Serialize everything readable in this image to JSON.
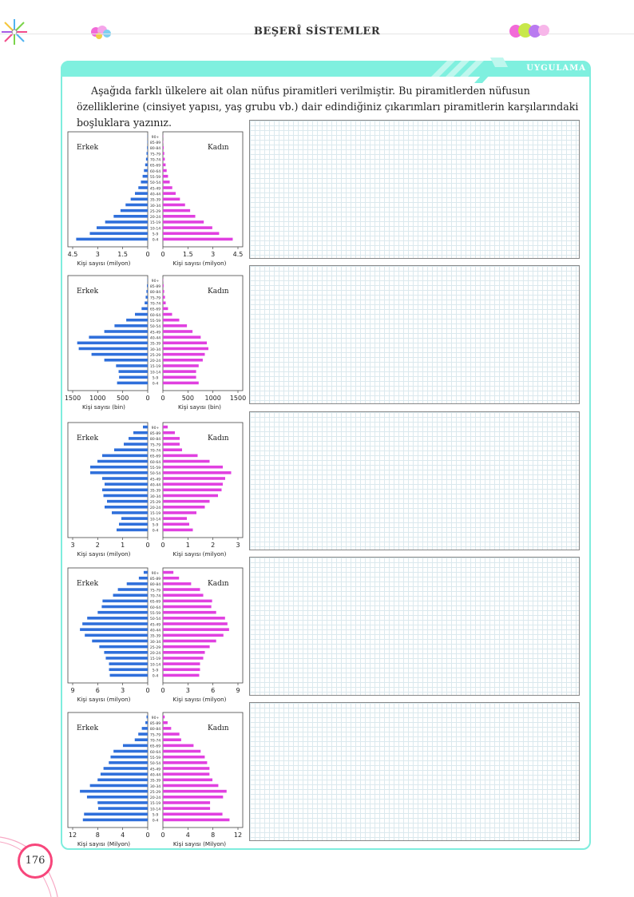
{
  "header": {
    "title": "BEŞERÎ SİSTEMLER"
  },
  "tab": {
    "label": "UYGULAMA"
  },
  "intro": "Aşağıda farklı ülkelere ait olan nüfus piramitleri verilmiştir. Bu piramitlerden nüfusun özelliklerine (cinsiyet yapısı, yaş grubu vb.) dair edindiğiniz çıkarımları piramitlerin karşılarındaki boşluklara yazınız.",
  "page_number": "176",
  "colors": {
    "male": "#2f6fdb",
    "female": "#e040e0",
    "accent": "#7ff0df",
    "page_circle": "#f7467b"
  },
  "chart_data": [
    {
      "type": "bar",
      "age_groups": [
        "0-4",
        "5-9",
        "10-14",
        "15-19",
        "20-24",
        "25-29",
        "30-34",
        "35-39",
        "40-44",
        "45-49",
        "50-54",
        "55-59",
        "60-64",
        "65-69",
        "70-74",
        "75-79",
        "80-84",
        "85-89",
        "90+"
      ],
      "male_label": "Erkek",
      "female_label": "Kadın",
      "xlabel": "Kişi sayısı (milyon)",
      "ticks_left": [
        "4.5",
        "3",
        "1.5",
        "0"
      ],
      "ticks_right": [
        "0",
        "1.5",
        "3",
        "4.5"
      ],
      "max": 4.5,
      "series": [
        {
          "name": "Erkek",
          "values": [
            4.2,
            3.4,
            3.0,
            2.5,
            2.0,
            1.6,
            1.3,
            1.0,
            0.75,
            0.55,
            0.4,
            0.3,
            0.22,
            0.15,
            0.1,
            0.07,
            0.04,
            0.02,
            0.01
          ]
        },
        {
          "name": "Kadın",
          "values": [
            4.1,
            3.3,
            2.9,
            2.4,
            1.9,
            1.6,
            1.3,
            1.0,
            0.75,
            0.55,
            0.4,
            0.3,
            0.22,
            0.16,
            0.11,
            0.08,
            0.05,
            0.02,
            0.01
          ]
        }
      ]
    },
    {
      "type": "bar",
      "age_groups": [
        "0-4",
        "5-9",
        "10-14",
        "15-19",
        "20-24",
        "25-29",
        "30-34",
        "35-39",
        "40-44",
        "45-49",
        "50-54",
        "55-59",
        "60-64",
        "65-69",
        "70-74",
        "75-79",
        "80-84",
        "85-89",
        "90+"
      ],
      "male_label": "Erkek",
      "female_label": "Kadın",
      "xlabel": "Kişi sayısı (bin)",
      "ticks_left": [
        "1500",
        "1000",
        "500",
        "0"
      ],
      "ticks_right": [
        "0",
        "500",
        "1000",
        "1500"
      ],
      "max": 1500,
      "series": [
        {
          "name": "Erkek",
          "values": [
            600,
            560,
            570,
            620,
            850,
            1100,
            1350,
            1380,
            1150,
            850,
            650,
            420,
            250,
            120,
            60,
            40,
            25,
            15,
            5
          ]
        },
        {
          "name": "Kadın",
          "values": [
            700,
            650,
            650,
            700,
            780,
            820,
            890,
            860,
            740,
            580,
            470,
            320,
            180,
            100,
            55,
            40,
            25,
            15,
            5
          ]
        }
      ]
    },
    {
      "type": "bar",
      "age_groups": [
        "0-4",
        "5-9",
        "10-14",
        "15-19",
        "20-24",
        "25-29",
        "30-34",
        "35-39",
        "40-44",
        "45-49",
        "50-54",
        "55-59",
        "60-64",
        "65-69",
        "70-74",
        "75-79",
        "80-84",
        "85-89",
        "90+"
      ],
      "male_label": "Erkek",
      "female_label": "Kadın",
      "xlabel": "Kişi sayısı (milyon)",
      "ticks_left": [
        "3",
        "2",
        "1",
        "0"
      ],
      "ticks_right": [
        "0",
        "1",
        "2",
        "3"
      ],
      "max": 3.2,
      "series": [
        {
          "name": "Erkek",
          "values": [
            1.3,
            1.2,
            1.1,
            1.5,
            1.8,
            1.7,
            1.85,
            1.9,
            1.8,
            1.9,
            2.4,
            2.4,
            2.1,
            1.9,
            1.4,
            1.0,
            0.8,
            0.6,
            0.2
          ]
        },
        {
          "name": "Kadın",
          "values": [
            1.25,
            1.1,
            1.0,
            1.4,
            1.75,
            1.95,
            2.3,
            2.45,
            2.5,
            2.6,
            2.85,
            2.5,
            1.95,
            1.45,
            0.8,
            0.7,
            0.7,
            0.5,
            0.2
          ]
        }
      ]
    },
    {
      "type": "bar",
      "age_groups": [
        "0-4",
        "5-9",
        "10-14",
        "15-19",
        "20-24",
        "25-29",
        "30-34",
        "35-39",
        "40-44",
        "45-49",
        "50-54",
        "55-59",
        "60-64",
        "65-69",
        "70-74",
        "75-79",
        "80-84",
        "85-89",
        "90+"
      ],
      "male_label": "Erkek",
      "female_label": "Kadın",
      "xlabel": "Kişi sayısı (milyon)",
      "ticks_left": [
        "9",
        "6",
        "3",
        "0"
      ],
      "ticks_right": [
        "0",
        "3",
        "6",
        "9"
      ],
      "max": 9.5,
      "series": [
        {
          "name": "Erkek",
          "values": [
            4.7,
            4.8,
            4.8,
            5.2,
            5.4,
            6.0,
            6.9,
            7.8,
            8.4,
            8.1,
            7.5,
            6.2,
            5.7,
            5.6,
            4.3,
            3.7,
            2.6,
            1.1,
            0.5
          ]
        },
        {
          "name": "Kadın",
          "values": [
            4.5,
            4.6,
            4.6,
            5.0,
            5.2,
            5.8,
            6.6,
            7.5,
            8.2,
            8.0,
            7.7,
            6.6,
            6.0,
            6.1,
            5.0,
            4.6,
            3.5,
            2.0,
            1.3
          ]
        }
      ]
    },
    {
      "type": "bar",
      "age_groups": [
        "0-4",
        "5-9",
        "10-14",
        "15-19",
        "20-24",
        "25-29",
        "30-34",
        "35-39",
        "40-44",
        "45-49",
        "50-54",
        "55-59",
        "60-64",
        "65-69",
        "70-74",
        "75-79",
        "80-84",
        "85-89",
        "90+"
      ],
      "male_label": "Erkek",
      "female_label": "Kadın",
      "xlabel": "Kişi sayısı (Milyon)",
      "ticks_left": [
        "12",
        "8",
        "4",
        "0"
      ],
      "ticks_right": [
        "0",
        "4",
        "8",
        "12"
      ],
      "max": 13,
      "series": [
        {
          "name": "Erkek",
          "values": [
            11.0,
            10.8,
            8.4,
            8.5,
            10.3,
            11.5,
            9.8,
            8.5,
            8.0,
            7.5,
            6.6,
            6.3,
            5.8,
            4.2,
            2.2,
            1.6,
            1.0,
            0.4,
            0.2
          ]
        },
        {
          "name": "Kadın",
          "values": [
            11.3,
            10.1,
            8.0,
            8.0,
            10.2,
            10.8,
            9.4,
            8.4,
            7.9,
            7.9,
            7.5,
            7.1,
            6.4,
            5.2,
            3.1,
            2.8,
            1.4,
            0.8,
            0.3
          ]
        }
      ]
    }
  ]
}
